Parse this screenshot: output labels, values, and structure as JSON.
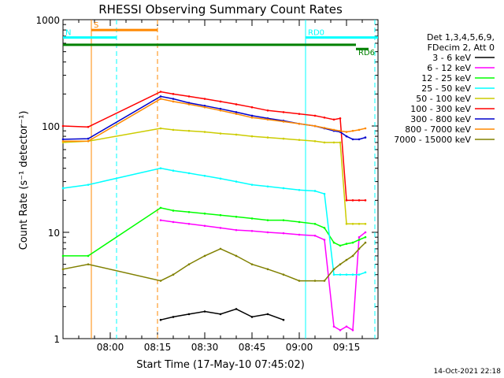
{
  "chart_data": {
    "type": "line",
    "title": "RHESSI Observing Summary Count Rates",
    "xlabel": "Start Time (17-May-10 07:45:02)",
    "ylabel": "Count Rate (s⁻¹ detector⁻¹)",
    "y_scale": "log",
    "ylim": [
      1,
      1000
    ],
    "xlim_minutes": [
      0,
      100
    ],
    "x_ticks": [
      {
        "t": 15,
        "label": "08:00"
      },
      {
        "t": 30,
        "label": "08:15"
      },
      {
        "t": 45,
        "label": "08:30"
      },
      {
        "t": 60,
        "label": "08:45"
      },
      {
        "t": 75,
        "label": "09:00"
      },
      {
        "t": 90,
        "label": "09:15"
      }
    ],
    "y_ticks": [
      {
        "v": 1,
        "label": "1"
      },
      {
        "v": 10,
        "label": "10"
      },
      {
        "v": 100,
        "label": "100"
      },
      {
        "v": 1000,
        "label": "1000"
      }
    ],
    "legend_header": [
      "Det 1,3,4,5,6,9,",
      "FDecim 2, Att 0"
    ],
    "series": [
      {
        "name": "3 - 6 keV",
        "color": "#000000",
        "x": [
          31,
          35,
          40,
          45,
          50,
          55,
          60,
          65,
          70
        ],
        "y": [
          1.5,
          1.6,
          1.7,
          1.8,
          1.7,
          1.9,
          1.6,
          1.7,
          1.5
        ]
      },
      {
        "name": "6 - 12 keV",
        "color": "#ff00ff",
        "x": [
          31,
          35,
          40,
          45,
          50,
          55,
          60,
          65,
          70,
          75,
          80,
          83,
          86,
          88,
          90,
          92,
          94,
          96
        ],
        "y": [
          13,
          12.5,
          12,
          11.5,
          11,
          10.5,
          10.3,
          10,
          9.8,
          9.5,
          9.3,
          8.5,
          1.3,
          1.2,
          1.3,
          1.2,
          9,
          10
        ]
      },
      {
        "name": "12 - 25 keV",
        "color": "#00ff00",
        "x": [
          0,
          8,
          31,
          35,
          40,
          45,
          50,
          55,
          60,
          65,
          70,
          75,
          80,
          83,
          86,
          88,
          90,
          92,
          94,
          96
        ],
        "y": [
          6,
          6,
          17,
          16,
          15.5,
          15,
          14.5,
          14,
          13.5,
          13,
          13,
          12.5,
          12,
          11,
          8,
          7.5,
          7.8,
          8,
          8.5,
          9
        ]
      },
      {
        "name": "25 - 50 keV",
        "color": "#00ffff",
        "x": [
          0,
          8,
          31,
          35,
          40,
          45,
          50,
          55,
          60,
          65,
          70,
          75,
          80,
          83,
          86,
          88,
          90,
          92,
          94,
          96
        ],
        "y": [
          26,
          28,
          40,
          38,
          36,
          34,
          32,
          30,
          28,
          27,
          26,
          25,
          24.5,
          23,
          4,
          4,
          4,
          4,
          4,
          4.2
        ]
      },
      {
        "name": "50 - 100 keV",
        "color": "#cccc00",
        "x": [
          0,
          8,
          31,
          35,
          40,
          45,
          50,
          55,
          60,
          65,
          70,
          75,
          80,
          83,
          86,
          88,
          90,
          92,
          94,
          96
        ],
        "y": [
          70,
          72,
          95,
          92,
          90,
          88,
          85,
          83,
          80,
          78,
          76,
          74,
          72,
          70,
          70,
          70,
          12,
          12,
          12,
          12
        ]
      },
      {
        "name": "100 - 300 keV",
        "color": "#ff0000",
        "x": [
          0,
          8,
          31,
          35,
          40,
          45,
          50,
          55,
          60,
          65,
          70,
          75,
          80,
          83,
          86,
          88,
          90,
          92,
          94,
          96
        ],
        "y": [
          100,
          98,
          210,
          200,
          190,
          180,
          170,
          160,
          150,
          140,
          135,
          130,
          125,
          120,
          115,
          118,
          20,
          20,
          20,
          20
        ]
      },
      {
        "name": "300 - 800 keV",
        "color": "#0000cc",
        "x": [
          0,
          8,
          31,
          35,
          40,
          45,
          50,
          55,
          60,
          65,
          70,
          75,
          80,
          83,
          86,
          88,
          90,
          92,
          94,
          96
        ],
        "y": [
          75,
          76,
          190,
          180,
          165,
          155,
          145,
          135,
          125,
          118,
          112,
          105,
          100,
          95,
          90,
          88,
          80,
          75,
          75,
          78
        ]
      },
      {
        "name": "800 - 7000 keV",
        "color": "#ff8800",
        "x": [
          0,
          8,
          31,
          35,
          40,
          45,
          50,
          55,
          60,
          65,
          70,
          75,
          80,
          83,
          86,
          88,
          90,
          92,
          94,
          96
        ],
        "y": [
          72,
          72,
          180,
          170,
          160,
          150,
          140,
          130,
          120,
          115,
          110,
          105,
          100,
          96,
          92,
          90,
          88,
          90,
          92,
          95
        ]
      },
      {
        "name": "7000 - 15000 keV",
        "color": "#808000",
        "x": [
          0,
          8,
          31,
          35,
          40,
          45,
          50,
          55,
          60,
          65,
          70,
          75,
          80,
          83,
          86,
          88,
          90,
          92,
          94,
          96
        ],
        "y": [
          4.5,
          5,
          3.5,
          4,
          5,
          6,
          7,
          6,
          5,
          4.5,
          4,
          3.5,
          3.5,
          3.5,
          4.5,
          5,
          5.5,
          6,
          7,
          8
        ]
      }
    ],
    "flags": [
      {
        "label": "S",
        "color": "#ff8800",
        "t_start": 9,
        "t_end": 30,
        "level": 800
      },
      {
        "label": "N",
        "color": "#00ffff",
        "t_start": 0,
        "t_end": 17,
        "level": 680
      },
      {
        "label": "RD0",
        "color": "#00ffff",
        "t_start": 77,
        "t_end": 100,
        "level": 680
      },
      {
        "label": "",
        "color": "#008000",
        "t_start": 0,
        "t_end": 93,
        "level": 580
      },
      {
        "label": "RD6",
        "color": "#008000",
        "t_start": 93,
        "t_end": 97,
        "level": 530
      }
    ],
    "markers": [
      {
        "t": 9,
        "color": "#ff8800",
        "style": "solid"
      },
      {
        "t": 17,
        "color": "#00ffff",
        "style": "dashed"
      },
      {
        "t": 30,
        "color": "#ff8800",
        "style": "dashed"
      },
      {
        "t": 77,
        "color": "#00ffff",
        "style": "solid"
      },
      {
        "t": 99,
        "color": "#00ffff",
        "style": "dashed"
      }
    ],
    "grid": false,
    "legend_position": "right"
  },
  "timestamp": "14-Oct-2021 22:18"
}
